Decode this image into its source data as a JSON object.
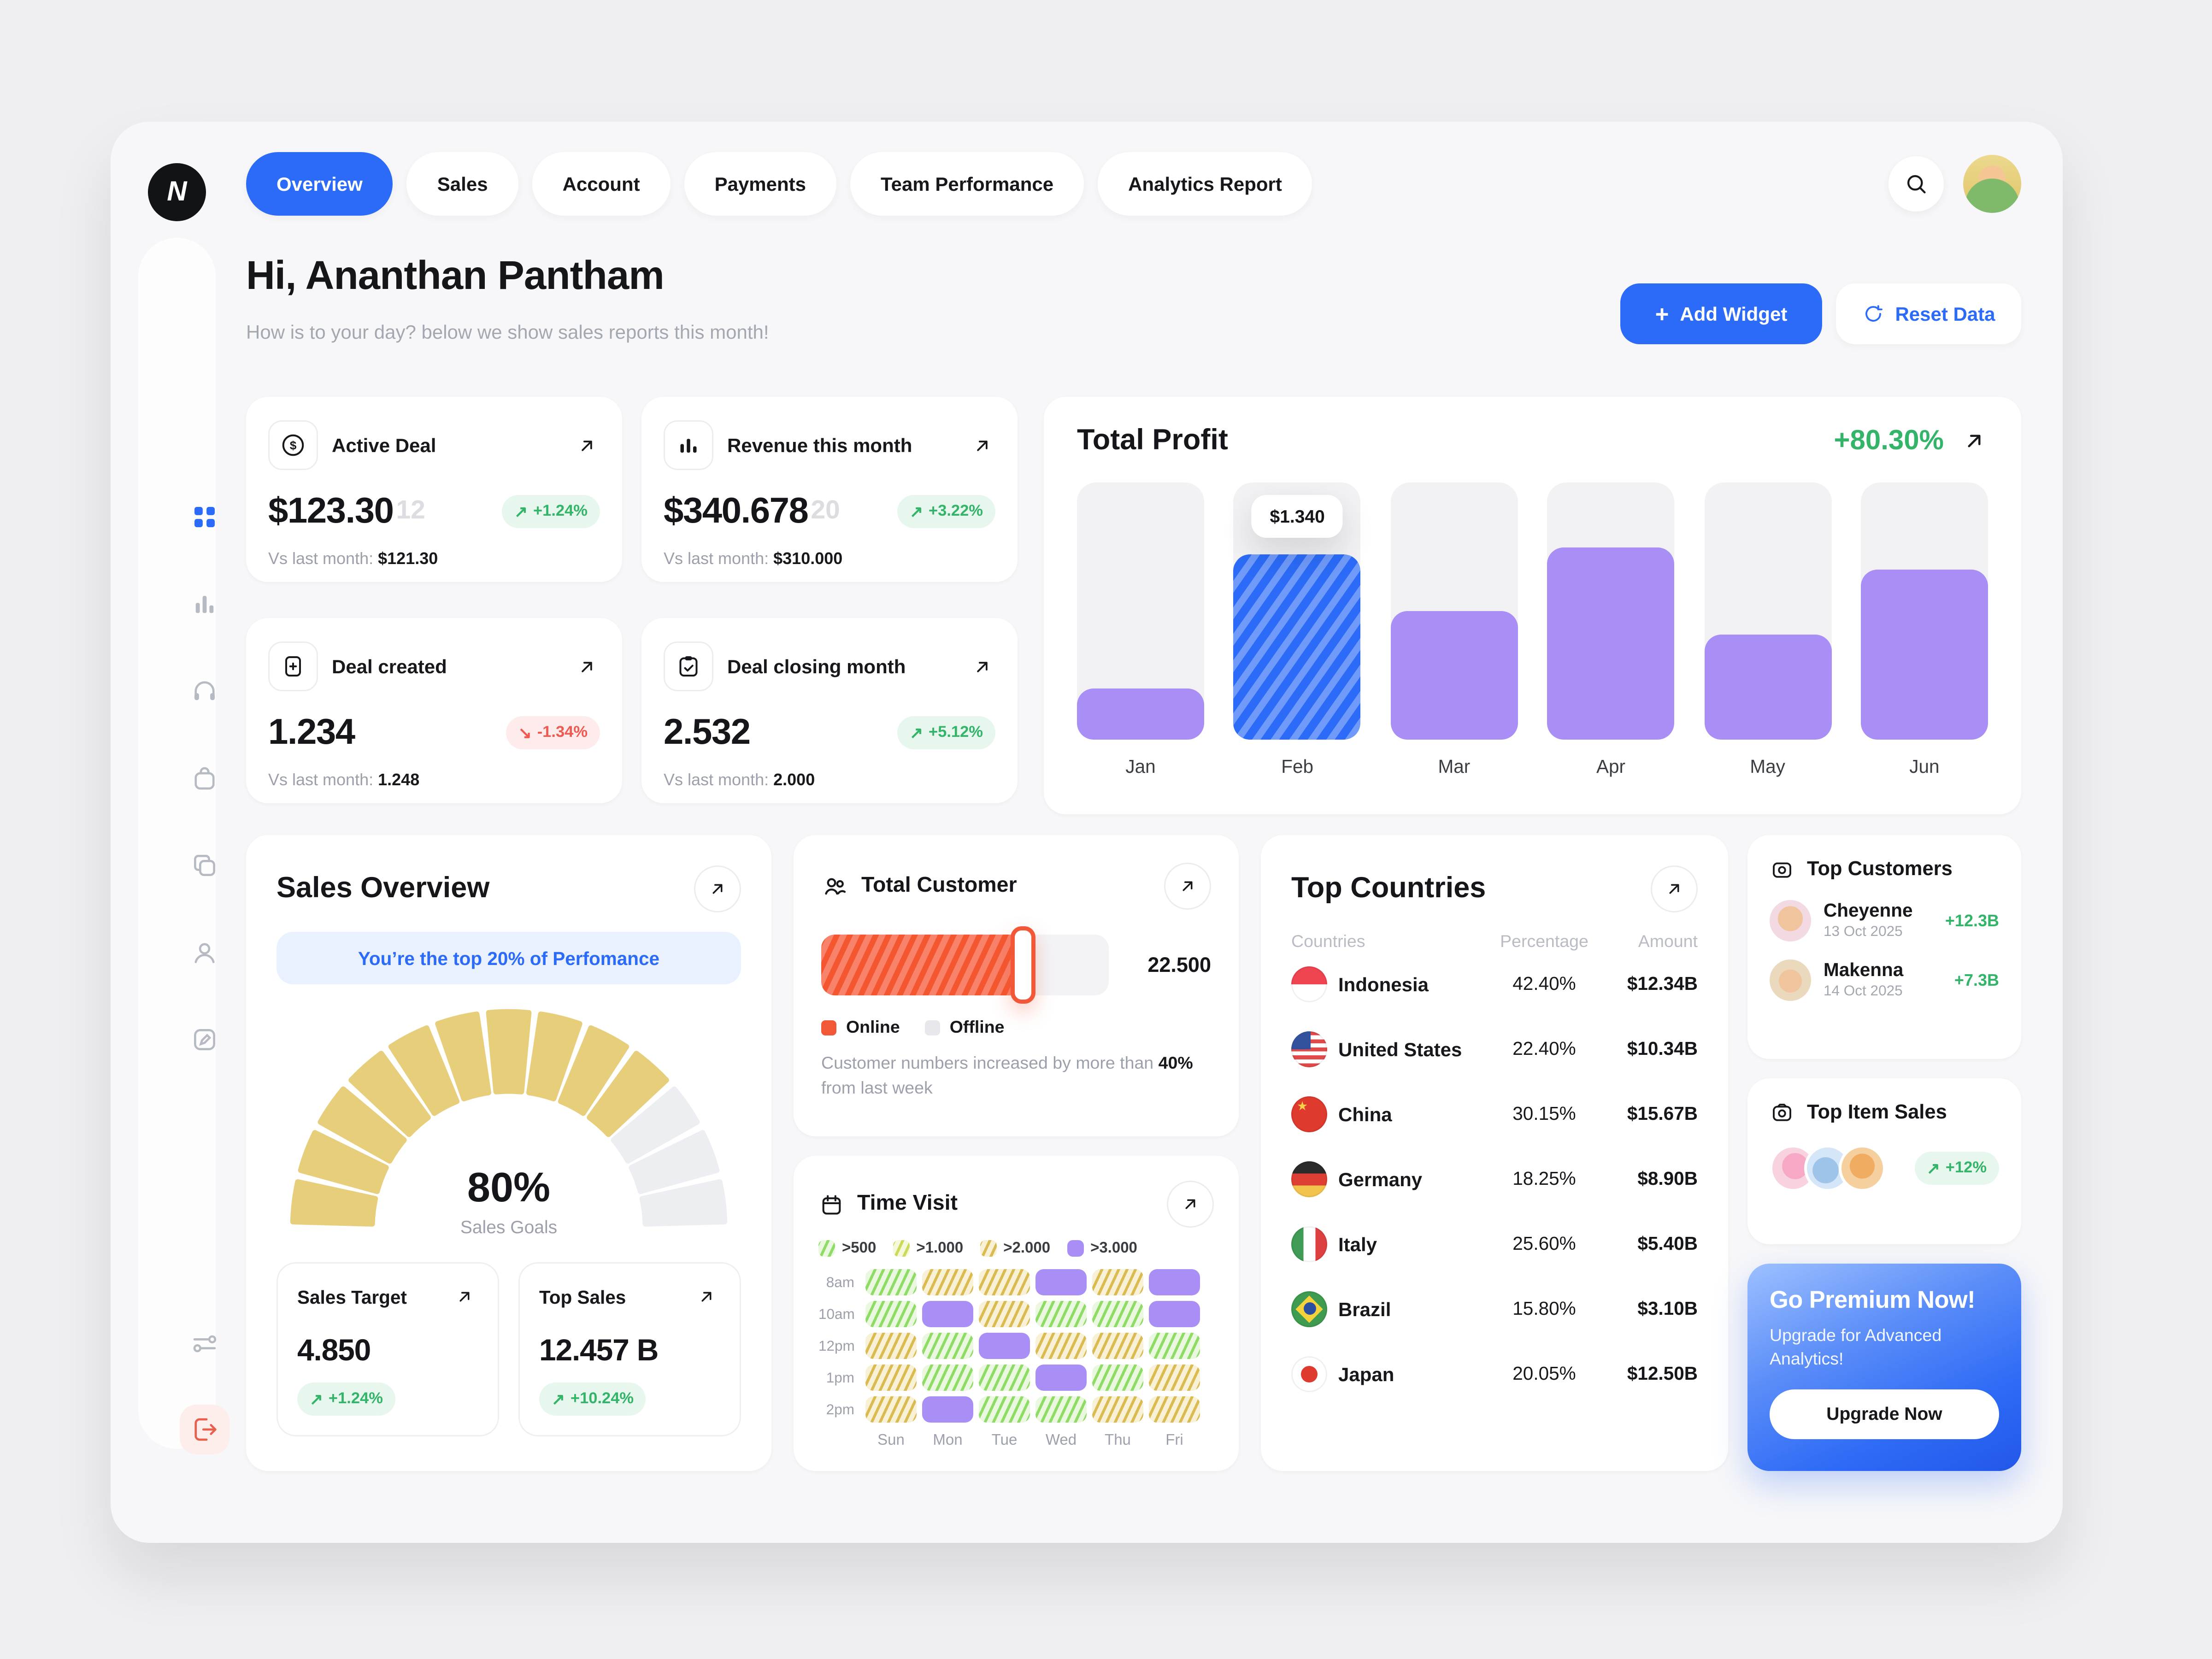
{
  "brand": {
    "logo_letter": "N"
  },
  "colors": {
    "accent": "#2b6bf7",
    "green": "#33b469",
    "red": "#ee5a52",
    "purple": "#a98ff5",
    "orange": "#f25738",
    "gauge_fill": "#e6ce7b",
    "gauge_empty": "#edeef2"
  },
  "icons": {
    "logo": "N-monogram",
    "search-icon": "magnifier",
    "add-icon": "plus",
    "reset-icon": "rotate-ccw",
    "expand-arrow-icon": "arrow-up-right",
    "trend-up-icon": "↗",
    "trend-down-icon": "↘",
    "sidebar": [
      "dashboard-grid",
      "bar-chart",
      "headset",
      "shopping-bag",
      "layers",
      "user",
      "edit",
      "sliders",
      "logout"
    ]
  },
  "nav": {
    "tabs": [
      {
        "label": "Overview",
        "active": true
      },
      {
        "label": "Sales",
        "active": false
      },
      {
        "label": "Account",
        "active": false
      },
      {
        "label": "Payments",
        "active": false
      },
      {
        "label": "Team Performance",
        "active": false
      },
      {
        "label": "Analytics Report",
        "active": false
      }
    ]
  },
  "header": {
    "greeting": "Hi, Ananthan Pantham",
    "subtitle": "How is to your day? below we show sales reports this month!",
    "add_widget_label": "Add Widget",
    "add_icon": "+",
    "reset_data_label": "Reset Data"
  },
  "stat_cards": [
    {
      "title": "Active Deal",
      "value": "$123.30",
      "value_ghost": "12",
      "change": "+1.24%",
      "trend": "up",
      "vs_label": "Vs last month:",
      "vs_value": "$121.30"
    },
    {
      "title": "Revenue this month",
      "value": "$340.678",
      "value_ghost": "20",
      "change": "+3.22%",
      "trend": "up",
      "vs_label": "Vs last month:",
      "vs_value": "$310.000"
    },
    {
      "title": "Deal created",
      "value": "1.234",
      "change": "-1.34%",
      "trend": "down",
      "vs_label": "Vs last month:",
      "vs_value": "1.248"
    },
    {
      "title": "Deal closing month",
      "value": "2.532",
      "change": "+5.12%",
      "trend": "up",
      "vs_label": "Vs last month:",
      "vs_value": "2.000"
    }
  ],
  "total_profit": {
    "title": "Total Profit",
    "change": "+80.30%",
    "chart_data": {
      "type": "bar",
      "categories": [
        "Jan",
        "Feb",
        "Mar",
        "Apr",
        "May",
        "Jun"
      ],
      "values": [
        20,
        72,
        50,
        75,
        41,
        66
      ],
      "value_unit": "percent_of_track_max",
      "highlight_index": 1,
      "highlight_tooltip": "$1.340",
      "bar_color": "#a98ff5",
      "highlight_color": "#2b6bf7",
      "track_color": "#f2f2f4",
      "grid": false,
      "legend": "none"
    }
  },
  "sales_overview": {
    "title": "Sales Overview",
    "banner": "You’re the top 20% of Perfomance",
    "gauge": {
      "percent": 80,
      "percent_label": "80%",
      "label": "Sales Goals",
      "segments": 13,
      "filled": 10
    },
    "sales_target": {
      "title": "Sales Target",
      "value": "4.850",
      "change": "+1.24%",
      "trend": "up"
    },
    "top_sales": {
      "title": "Top Sales",
      "value": "12.457 B",
      "change": "+10.24%",
      "trend": "up"
    }
  },
  "total_customer": {
    "title": "Total Customer",
    "value": "22.500",
    "progress_percent": 70,
    "legend": [
      {
        "label": "Online",
        "color": "#f25738"
      },
      {
        "label": "Offline",
        "color": "#e8e8ec"
      }
    ],
    "note_prefix": "Customer numbers increased by more than ",
    "note_bold": "40%",
    "note_suffix": " from last week"
  },
  "time_visit": {
    "title": "Time Visit",
    "chart_data": {
      "type": "heatmap",
      "rows": [
        "8am",
        "10am",
        "12pm",
        "1pm",
        "2pm"
      ],
      "cols": [
        "Sun",
        "Mon",
        "Tue",
        "Wed",
        "Thu",
        "Fri"
      ],
      "legend": [
        {
          "label": ">500",
          "key": "500"
        },
        {
          "label": ">1.000",
          "key": "1000"
        },
        {
          "label": ">2.000",
          "key": "2000"
        },
        {
          "label": ">3.000",
          "key": "3000"
        }
      ],
      "cells": [
        [
          "500",
          "2000",
          "2000",
          "3000",
          "2000",
          "3000"
        ],
        [
          "500",
          "3000",
          "2000",
          "500",
          "500",
          "3000"
        ],
        [
          "2000",
          "500",
          "3000",
          "2000",
          "2000",
          "500"
        ],
        [
          "2000",
          "500",
          "500",
          "3000",
          "500",
          "2000"
        ],
        [
          "2000",
          "3000",
          "500",
          "500",
          "2000",
          "2000"
        ]
      ]
    }
  },
  "top_countries": {
    "title": "Top Countries",
    "headers": [
      "Countries",
      "Percentage",
      "Amount"
    ],
    "rows": [
      {
        "name": "Indonesia",
        "percentage": "42.40%",
        "amount": "$12.34B",
        "flag": "id"
      },
      {
        "name": "United States",
        "percentage": "22.40%",
        "amount": "$10.34B",
        "flag": "us"
      },
      {
        "name": "China",
        "percentage": "30.15%",
        "amount": "$15.67B",
        "flag": "cn"
      },
      {
        "name": "Germany",
        "percentage": "18.25%",
        "amount": "$8.90B",
        "flag": "de"
      },
      {
        "name": "Italy",
        "percentage": "25.60%",
        "amount": "$5.40B",
        "flag": "it"
      },
      {
        "name": "Brazil",
        "percentage": "15.80%",
        "amount": "$3.10B",
        "flag": "br"
      },
      {
        "name": "Japan",
        "percentage": "20.05%",
        "amount": "$12.50B",
        "flag": "jp"
      }
    ]
  },
  "top_customers": {
    "title": "Top Customers",
    "rows": [
      {
        "name": "Cheyenne",
        "date": "13 Oct 2025",
        "amount": "+12.3B"
      },
      {
        "name": "Makenna",
        "date": "14 Oct 2025",
        "amount": "+7.3B"
      }
    ]
  },
  "top_item_sales": {
    "title": "Top Item Sales",
    "change": "+12%"
  },
  "premium": {
    "title": "Go Premium Now!",
    "subtitle": "Upgrade for Advanced Analytics!",
    "button": "Upgrade Now"
  }
}
